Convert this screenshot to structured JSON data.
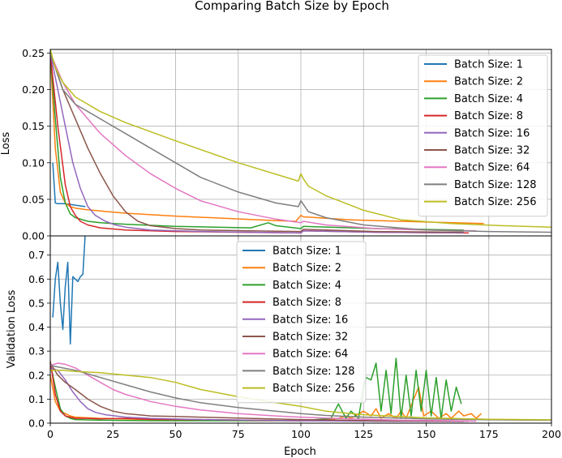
{
  "figure_title": "Comparing Batch Size by Epoch",
  "colors": {
    "Batch Size: 1": "#1f77b4",
    "Batch Size: 2": "#ff7f0e",
    "Batch Size: 4": "#2ca02c",
    "Batch Size: 8": "#d62728",
    "Batch Size: 16": "#9467bd",
    "Batch Size: 32": "#8c564b",
    "Batch Size: 64": "#e377c2",
    "Batch Size: 128": "#7f7f7f",
    "Batch Size: 256": "#bcbd22",
    "grid": "#b0b0b0"
  },
  "chart_data": [
    {
      "type": "line",
      "title": "",
      "xlabel": "",
      "ylabel": "Loss",
      "xlim": [
        0,
        200
      ],
      "ylim": [
        0,
        0.255
      ],
      "xticks": [
        0,
        25,
        50,
        75,
        100,
        125,
        150,
        175,
        200
      ],
      "yticks": [
        0.0,
        0.05,
        0.1,
        0.15,
        0.2,
        0.25
      ],
      "ytick_labels": [
        "0.00",
        "0.05",
        "0.10",
        "0.15",
        "0.20",
        "0.25"
      ],
      "show_x_tick_labels": false,
      "grid": true,
      "legend": "upper right",
      "series": [
        {
          "name": "Batch Size: 1",
          "x": [
            1,
            2,
            3,
            6,
            10,
            14
          ],
          "y": [
            0.1,
            0.045,
            0.044,
            0.044,
            0.042,
            0.04
          ]
        },
        {
          "name": "Batch Size: 2",
          "x": [
            0,
            2,
            4,
            6,
            8,
            10,
            14,
            20,
            30,
            50,
            70,
            90,
            98,
            100,
            101,
            120,
            150,
            173
          ],
          "y": [
            0.25,
            0.12,
            0.06,
            0.045,
            0.04,
            0.038,
            0.036,
            0.034,
            0.031,
            0.027,
            0.024,
            0.021,
            0.02,
            0.028,
            0.026,
            0.022,
            0.019,
            0.017
          ]
        },
        {
          "name": "Batch Size: 4",
          "x": [
            0,
            2,
            4,
            6,
            8,
            10,
            15,
            20,
            30,
            50,
            80,
            87,
            90,
            100,
            101,
            130,
            165
          ],
          "y": [
            0.25,
            0.16,
            0.08,
            0.045,
            0.03,
            0.025,
            0.02,
            0.018,
            0.016,
            0.013,
            0.011,
            0.018,
            0.014,
            0.01,
            0.013,
            0.01,
            0.008
          ]
        },
        {
          "name": "Batch Size: 8",
          "x": [
            0,
            3,
            6,
            8,
            10,
            12,
            15,
            20,
            30,
            50,
            75,
            100,
            101,
            130,
            167
          ],
          "y": [
            0.25,
            0.15,
            0.07,
            0.04,
            0.028,
            0.02,
            0.015,
            0.011,
            0.008,
            0.006,
            0.005,
            0.004,
            0.007,
            0.005,
            0.004
          ]
        },
        {
          "name": "Batch Size: 16",
          "x": [
            0,
            3,
            6,
            9,
            12,
            15,
            18,
            22,
            26,
            30,
            40,
            60,
            100,
            101,
            130,
            165
          ],
          "y": [
            0.25,
            0.2,
            0.15,
            0.1,
            0.065,
            0.04,
            0.028,
            0.02,
            0.015,
            0.012,
            0.008,
            0.006,
            0.004,
            0.007,
            0.005,
            0.004
          ]
        },
        {
          "name": "Batch Size: 32",
          "x": [
            0,
            5,
            10,
            15,
            20,
            25,
            30,
            35,
            40,
            50,
            60,
            80,
            100,
            101,
            130,
            165
          ],
          "y": [
            0.25,
            0.2,
            0.16,
            0.12,
            0.085,
            0.055,
            0.033,
            0.02,
            0.014,
            0.01,
            0.008,
            0.007,
            0.006,
            0.009,
            0.006,
            0.005
          ]
        },
        {
          "name": "Batch Size: 64",
          "x": [
            0,
            5,
            10,
            20,
            30,
            40,
            50,
            60,
            75,
            90,
            100,
            101,
            110,
            130,
            150,
            170
          ],
          "y": [
            0.25,
            0.21,
            0.18,
            0.14,
            0.11,
            0.085,
            0.065,
            0.048,
            0.033,
            0.023,
            0.018,
            0.02,
            0.015,
            0.01,
            0.008,
            0.007
          ]
        },
        {
          "name": "Batch Size: 128",
          "x": [
            0,
            5,
            10,
            20,
            30,
            40,
            50,
            60,
            75,
            90,
            99,
            100,
            101,
            103,
            110,
            125,
            150,
            175,
            200
          ],
          "y": [
            0.25,
            0.2,
            0.18,
            0.16,
            0.14,
            0.12,
            0.1,
            0.08,
            0.06,
            0.045,
            0.04,
            0.048,
            0.043,
            0.033,
            0.025,
            0.015,
            0.008,
            0.006,
            0.005
          ]
        },
        {
          "name": "Batch Size: 256",
          "x": [
            0,
            2,
            5,
            10,
            20,
            30,
            50,
            75,
            99,
            100,
            101,
            103,
            110,
            125,
            140,
            160,
            180,
            200
          ],
          "y": [
            0.255,
            0.23,
            0.21,
            0.19,
            0.17,
            0.155,
            0.13,
            0.1,
            0.075,
            0.085,
            0.078,
            0.068,
            0.055,
            0.035,
            0.022,
            0.017,
            0.014,
            0.012
          ]
        }
      ]
    },
    {
      "type": "line",
      "title": "",
      "xlabel": "Epoch",
      "ylabel": "Validation Loss",
      "xlim": [
        0,
        200
      ],
      "ylim": [
        0,
        0.78
      ],
      "xticks": [
        0,
        25,
        50,
        75,
        100,
        125,
        150,
        175,
        200
      ],
      "xtick_labels": [
        "0",
        "25",
        "50",
        "75",
        "100",
        "125",
        "150",
        "175",
        "200"
      ],
      "yticks": [
        0.0,
        0.1,
        0.2,
        0.3,
        0.4,
        0.5,
        0.6,
        0.7
      ],
      "ytick_labels": [
        "0.0",
        "0.1",
        "0.2",
        "0.3",
        "0.4",
        "0.5",
        "0.6",
        "0.7"
      ],
      "grid": true,
      "legend": "upper center",
      "series": [
        {
          "name": "Batch Size: 1",
          "x": [
            1,
            2,
            3,
            4,
            5,
            6,
            7,
            8,
            9,
            10,
            11,
            12,
            13,
            14
          ],
          "y": [
            0.44,
            0.6,
            0.67,
            0.5,
            0.39,
            0.57,
            0.67,
            0.33,
            0.61,
            0.6,
            0.59,
            0.61,
            0.62,
            0.8
          ]
        },
        {
          "name": "Batch Size: 2",
          "x": [
            0,
            2,
            4,
            6,
            8,
            10,
            20,
            40,
            60,
            80,
            100,
            110,
            115,
            118,
            120,
            125,
            128,
            130,
            132,
            135,
            138,
            140,
            142,
            145,
            147,
            149,
            152,
            155,
            158,
            160,
            163,
            165,
            168,
            170,
            172
          ],
          "y": [
            0.2,
            0.09,
            0.05,
            0.04,
            0.03,
            0.025,
            0.02,
            0.015,
            0.012,
            0.01,
            0.01,
            0.015,
            0.02,
            0.03,
            0.02,
            0.05,
            0.03,
            0.06,
            0.02,
            0.04,
            0.02,
            0.05,
            0.02,
            0.1,
            0.15,
            0.03,
            0.05,
            0.02,
            0.04,
            0.02,
            0.05,
            0.03,
            0.04,
            0.02,
            0.04
          ]
        },
        {
          "name": "Batch Size: 4",
          "x": [
            0,
            2,
            4,
            6,
            8,
            10,
            20,
            40,
            60,
            80,
            100,
            112,
            115,
            118,
            120,
            123,
            125,
            126,
            128,
            130,
            132,
            134,
            136,
            138,
            140,
            142,
            144,
            146,
            148,
            150,
            152,
            154,
            156,
            158,
            160,
            162,
            164
          ],
          "y": [
            0.25,
            0.15,
            0.06,
            0.03,
            0.02,
            0.015,
            0.012,
            0.01,
            0.01,
            0.01,
            0.01,
            0.02,
            0.08,
            0.02,
            0.05,
            0.02,
            0.15,
            0.19,
            0.18,
            0.25,
            0.05,
            0.22,
            0.04,
            0.27,
            0.02,
            0.2,
            0.03,
            0.22,
            0.05,
            0.22,
            0.03,
            0.19,
            0.02,
            0.18,
            0.05,
            0.15,
            0.08
          ]
        },
        {
          "name": "Batch Size: 8",
          "x": [
            0,
            2,
            4,
            6,
            8,
            10,
            15,
            20,
            30,
            40,
            60,
            80,
            100,
            120,
            140,
            150
          ],
          "y": [
            0.26,
            0.12,
            0.05,
            0.03,
            0.025,
            0.02,
            0.02,
            0.018,
            0.02,
            0.016,
            0.015,
            0.012,
            0.01,
            0.01,
            0.008,
            0.008
          ]
        },
        {
          "name": "Batch Size: 16",
          "x": [
            0,
            3,
            6,
            9,
            12,
            15,
            18,
            22,
            26,
            30,
            40,
            60,
            80,
            100,
            130,
            165
          ],
          "y": [
            0.23,
            0.22,
            0.18,
            0.13,
            0.09,
            0.06,
            0.045,
            0.035,
            0.03,
            0.025,
            0.02,
            0.015,
            0.012,
            0.01,
            0.008,
            0.007
          ]
        },
        {
          "name": "Batch Size: 32",
          "x": [
            0,
            3,
            6,
            10,
            15,
            20,
            25,
            30,
            35,
            40,
            50,
            60,
            80,
            100,
            130,
            167
          ],
          "y": [
            0.25,
            0.2,
            0.17,
            0.14,
            0.1,
            0.07,
            0.05,
            0.04,
            0.035,
            0.03,
            0.028,
            0.025,
            0.02,
            0.015,
            0.01,
            0.008
          ]
        },
        {
          "name": "Batch Size: 64",
          "x": [
            0,
            3,
            6,
            10,
            15,
            20,
            25,
            30,
            40,
            50,
            60,
            75,
            90,
            100,
            120,
            140,
            160,
            170
          ],
          "y": [
            0.24,
            0.25,
            0.245,
            0.23,
            0.2,
            0.17,
            0.14,
            0.12,
            0.09,
            0.07,
            0.055,
            0.04,
            0.03,
            0.025,
            0.018,
            0.012,
            0.01,
            0.008
          ]
        },
        {
          "name": "Batch Size: 128",
          "x": [
            0,
            5,
            10,
            20,
            30,
            40,
            50,
            60,
            75,
            90,
            100,
            110,
            125,
            150,
            175,
            200
          ],
          "y": [
            0.24,
            0.23,
            0.22,
            0.19,
            0.16,
            0.13,
            0.105,
            0.085,
            0.065,
            0.05,
            0.04,
            0.032,
            0.025,
            0.018,
            0.014,
            0.012
          ]
        },
        {
          "name": "Batch Size: 256",
          "x": [
            0,
            5,
            10,
            20,
            30,
            40,
            50,
            60,
            75,
            90,
            100,
            110,
            125,
            150,
            175,
            200
          ],
          "y": [
            0.22,
            0.22,
            0.215,
            0.21,
            0.2,
            0.19,
            0.17,
            0.14,
            0.11,
            0.085,
            0.07,
            0.05,
            0.035,
            0.022,
            0.016,
            0.014
          ]
        }
      ]
    }
  ]
}
